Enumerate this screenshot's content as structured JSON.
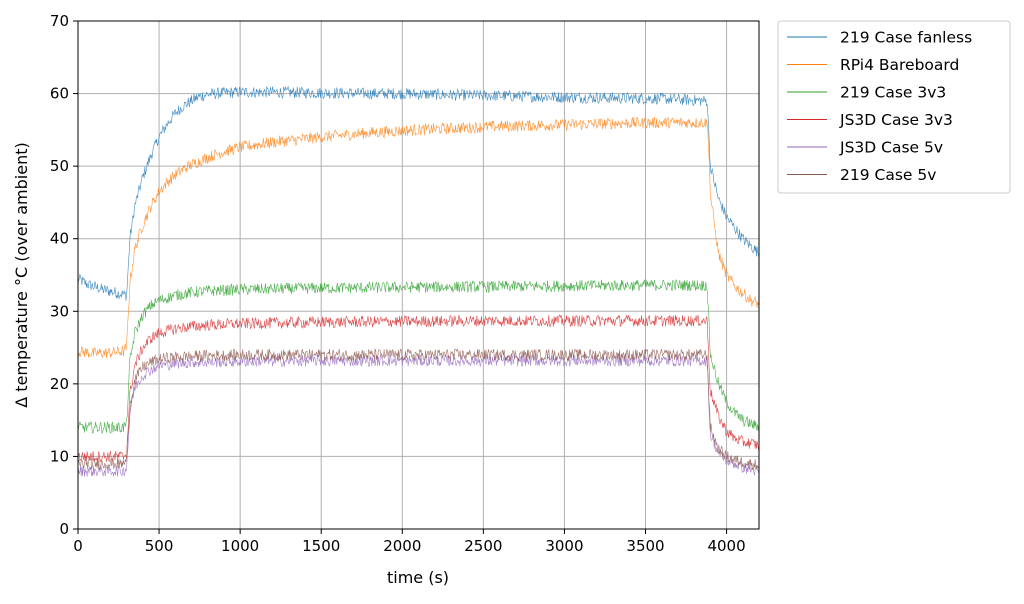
{
  "chart_data": {
    "type": "line",
    "title": "",
    "xlabel": "time (s)",
    "ylabel": "Δ temperature °C (over ambient)",
    "xlim": [
      0,
      4200
    ],
    "ylim": [
      0,
      70
    ],
    "xticks": [
      0,
      500,
      1000,
      1500,
      2000,
      2500,
      3000,
      3500,
      4000
    ],
    "yticks": [
      0,
      10,
      20,
      30,
      40,
      50,
      60,
      70
    ],
    "grid": true,
    "legend_position": "outside-upper-right",
    "series": [
      {
        "name": "219 Case fanless",
        "color": "#1f77b4",
        "x": [
          0,
          50,
          150,
          250,
          300,
          320,
          350,
          400,
          450,
          500,
          550,
          600,
          650,
          700,
          750,
          800,
          900,
          1000,
          1200,
          1500,
          1800,
          2000,
          2300,
          2600,
          3000,
          3300,
          3600,
          3880,
          3890,
          3900,
          3950,
          4000,
          4050,
          4100,
          4150,
          4200
        ],
        "y": [
          34.5,
          33.8,
          33.0,
          32.5,
          32.2,
          40.0,
          44.5,
          48.5,
          51.5,
          54.0,
          55.8,
          57.3,
          58.3,
          59.0,
          59.6,
          59.9,
          60.1,
          60.2,
          60.2,
          60.1,
          60.0,
          60.0,
          59.8,
          59.7,
          59.5,
          59.4,
          59.3,
          59.0,
          55.0,
          50.0,
          45.5,
          43.0,
          41.5,
          40.0,
          39.0,
          38.0
        ]
      },
      {
        "name": "RPi4 Bareboard",
        "color": "#ff7f0e",
        "x": [
          0,
          100,
          200,
          280,
          300,
          320,
          350,
          400,
          450,
          500,
          550,
          600,
          650,
          700,
          800,
          900,
          1000,
          1200,
          1500,
          1800,
          2000,
          2300,
          2600,
          3000,
          3300,
          3600,
          3880,
          3890,
          3900,
          3950,
          4000,
          4050,
          4100,
          4150,
          4200
        ],
        "y": [
          24.5,
          24.2,
          24.3,
          24.5,
          25.0,
          34.0,
          38.5,
          42.0,
          44.5,
          46.5,
          47.8,
          48.8,
          49.6,
          50.2,
          51.2,
          52.0,
          52.6,
          53.3,
          54.0,
          54.6,
          54.9,
          55.2,
          55.5,
          55.7,
          55.9,
          56.0,
          56.0,
          53.0,
          46.0,
          38.0,
          35.0,
          33.5,
          32.5,
          31.5,
          31.0
        ]
      },
      {
        "name": "219 Case 3v3",
        "color": "#2ca02c",
        "x": [
          0,
          100,
          200,
          280,
          300,
          320,
          350,
          400,
          450,
          500,
          600,
          700,
          800,
          1000,
          1500,
          2000,
          2500,
          3000,
          3500,
          3880,
          3890,
          3900,
          3950,
          4000,
          4050,
          4100,
          4150,
          4200
        ],
        "y": [
          14.0,
          14.0,
          14.0,
          14.0,
          14.5,
          23.0,
          27.0,
          29.5,
          30.8,
          31.5,
          32.2,
          32.6,
          32.8,
          33.0,
          33.2,
          33.3,
          33.4,
          33.5,
          33.6,
          33.6,
          29.0,
          24.0,
          20.0,
          17.5,
          16.0,
          15.0,
          14.5,
          14.0
        ]
      },
      {
        "name": "JS3D Case 3v3",
        "color": "#d62728",
        "x": [
          0,
          100,
          200,
          280,
          300,
          320,
          350,
          400,
          450,
          500,
          600,
          700,
          800,
          1000,
          1500,
          2000,
          2500,
          3000,
          3500,
          3880,
          3890,
          3900,
          3950,
          4000,
          4050,
          4100,
          4150,
          4200
        ],
        "y": [
          10.0,
          10.0,
          10.0,
          10.0,
          10.5,
          18.5,
          22.5,
          25.0,
          26.3,
          27.0,
          27.6,
          27.9,
          28.1,
          28.3,
          28.5,
          28.6,
          28.7,
          28.7,
          28.7,
          28.7,
          24.0,
          19.0,
          15.5,
          13.5,
          12.5,
          12.0,
          11.8,
          11.5
        ]
      },
      {
        "name": "JS3D Case 5v",
        "color": "#9467bd",
        "x": [
          0,
          100,
          200,
          280,
          300,
          320,
          350,
          400,
          450,
          500,
          600,
          700,
          800,
          1000,
          1500,
          2000,
          2500,
          3000,
          3500,
          3880,
          3890,
          3900,
          3950,
          4000,
          4050,
          4100,
          4150,
          4200
        ],
        "y": [
          8.0,
          8.0,
          8.0,
          8.0,
          8.5,
          16.0,
          19.5,
          21.2,
          22.0,
          22.5,
          22.8,
          23.0,
          23.0,
          23.1,
          23.2,
          23.2,
          23.2,
          23.2,
          23.2,
          23.2,
          18.0,
          13.0,
          10.5,
          9.5,
          9.0,
          8.5,
          8.2,
          8.0
        ]
      },
      {
        "name": "219 Case 5v",
        "color": "#8c564b",
        "x": [
          0,
          100,
          200,
          280,
          300,
          320,
          350,
          400,
          450,
          500,
          600,
          700,
          800,
          1000,
          1500,
          2000,
          2500,
          3000,
          3500,
          3880,
          3890,
          3900,
          3950,
          4000,
          4050,
          4100,
          4150,
          4200
        ],
        "y": [
          9.0,
          9.0,
          9.0,
          9.0,
          9.5,
          17.0,
          20.5,
          22.3,
          23.0,
          23.4,
          23.7,
          23.8,
          23.9,
          24.0,
          24.0,
          24.0,
          24.0,
          24.0,
          24.0,
          24.0,
          19.0,
          14.0,
          11.0,
          10.0,
          9.5,
          9.2,
          9.0,
          8.8
        ]
      }
    ]
  }
}
